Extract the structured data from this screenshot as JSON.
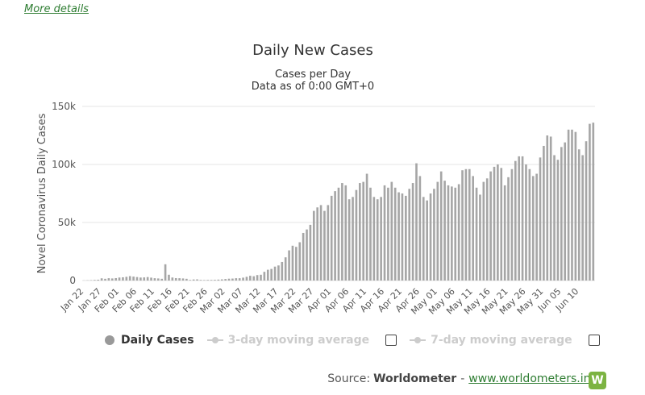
{
  "link": {
    "more_details": "More details"
  },
  "legend": {
    "daily": "Daily Cases",
    "ma3": "3-day moving average",
    "ma7": "7-day moving average"
  },
  "source": {
    "prefix": "Source:",
    "brand": "Worldometer",
    "separator": "-",
    "url": "www.worldometers.info",
    "logo_letter": "W"
  },
  "colors": {
    "bar": "#a6a6a6",
    "grid": "#e6e6e6",
    "link": "#2e7d32",
    "logo": "#7cb342"
  },
  "chart_data": {
    "type": "bar",
    "title": "Daily New Cases",
    "subtitle_lines": [
      "Cases per Day",
      "Data as of 0:00 GMT+0"
    ],
    "ylabel": "Novel Coronavirus Daily Cases",
    "ylim": [
      0,
      150000
    ],
    "yticks": [
      0,
      50000,
      100000,
      150000
    ],
    "ytick_labels": [
      "0",
      "50k",
      "100k",
      "150k"
    ],
    "x_tick_labels": [
      "Jan 22",
      "Jan 27",
      "Feb 01",
      "Feb 06",
      "Feb 11",
      "Feb 16",
      "Feb 21",
      "Feb 26",
      "Mar 02",
      "Mar 07",
      "Mar 12",
      "Mar 17",
      "Mar 22",
      "Mar 27",
      "Apr 01",
      "Apr 06",
      "Apr 11",
      "Apr 16",
      "Apr 21",
      "Apr 26",
      "May 01",
      "May 06",
      "May 11",
      "May 16",
      "May 21",
      "May 26",
      "May 31",
      "Jun 05",
      "Jun 10"
    ],
    "x_tick_every": 5,
    "series": [
      {
        "name": "Daily Cases",
        "values": [
          100,
          200,
          300,
          500,
          700,
          1900,
          1500,
          2000,
          1800,
          2100,
          2600,
          2800,
          3200,
          3800,
          3400,
          3000,
          2600,
          2700,
          3000,
          2500,
          2000,
          1800,
          1500,
          14000,
          5000,
          2600,
          2100,
          2000,
          1800,
          1500,
          500,
          900,
          1000,
          500,
          400,
          500,
          500,
          600,
          800,
          1000,
          1300,
          1600,
          1700,
          2000,
          2000,
          2500,
          3200,
          4100,
          3700,
          4700,
          5000,
          7500,
          9300,
          10000,
          12000,
          13000,
          16000,
          20000,
          26000,
          30000,
          29000,
          33000,
          41000,
          44000,
          48000,
          60000,
          63000,
          65000,
          60000,
          65000,
          73000,
          77000,
          80000,
          84000,
          82000,
          70000,
          72000,
          78000,
          84000,
          85000,
          92000,
          80000,
          72000,
          70000,
          72000,
          82000,
          80000,
          85000,
          80000,
          76000,
          75000,
          73000,
          79000,
          84000,
          101000,
          90000,
          72000,
          69000,
          75000,
          79000,
          85000,
          94000,
          86000,
          82000,
          81000,
          80000,
          83000,
          95000,
          96000,
          96000,
          90000,
          80000,
          74000,
          85000,
          88000,
          94000,
          98000,
          100000,
          97000,
          82000,
          89000,
          96000,
          103000,
          107000,
          107000,
          100000,
          96000,
          90000,
          92000,
          106000,
          116000,
          125000,
          124000,
          108000,
          104000,
          115000,
          119000,
          130000,
          130000,
          128000,
          113000,
          108000,
          120000,
          135000,
          136000
        ]
      }
    ]
  }
}
